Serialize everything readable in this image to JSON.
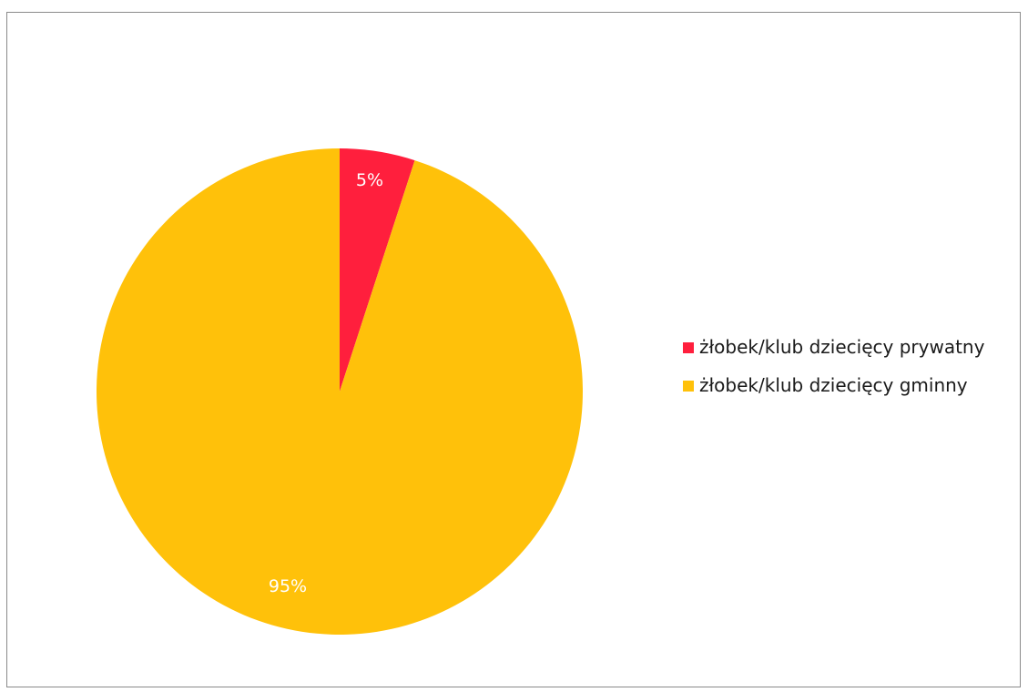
{
  "chart_data": {
    "type": "pie",
    "title": "",
    "slices": [
      {
        "name": "żłobek/klub dziecięcy prywatny",
        "value": 5,
        "label": "5%",
        "color": "#ff1f3d"
      },
      {
        "name": "żłobek/klub dziecięcy gminny",
        "value": 95,
        "label": "95%",
        "color": "#ffc10a"
      }
    ],
    "legend_position": "right",
    "start_angle": "top, clockwise"
  }
}
